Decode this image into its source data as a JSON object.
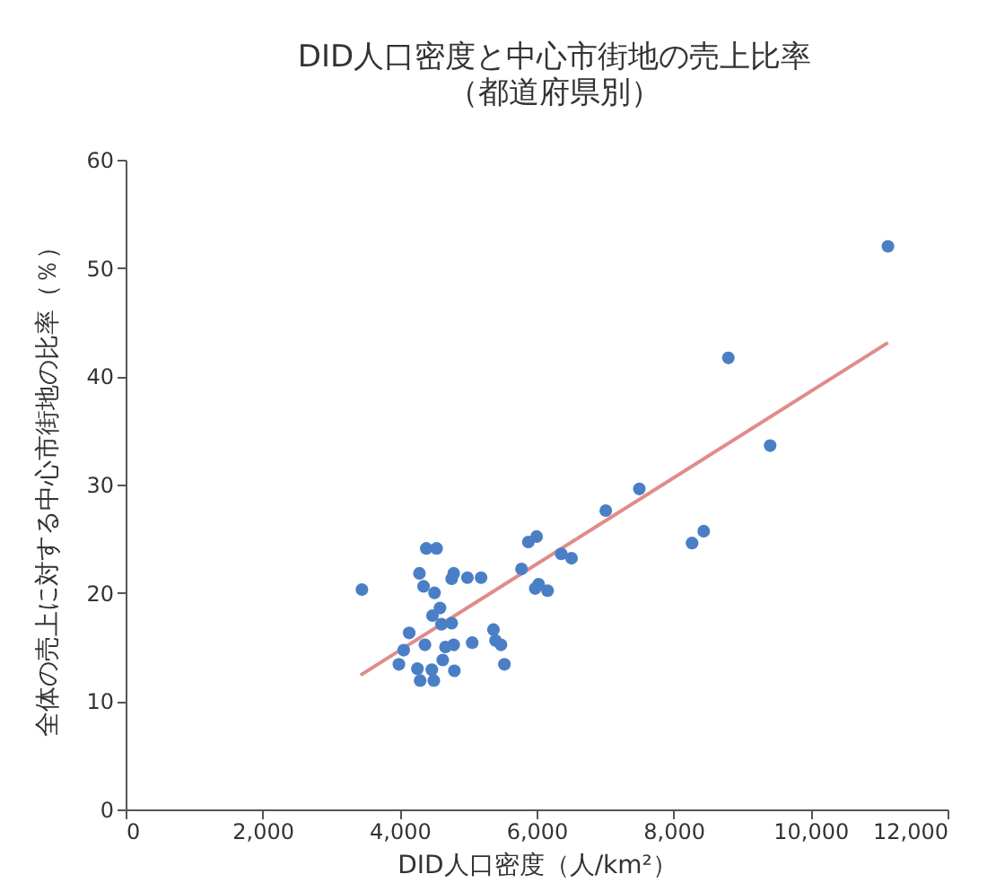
{
  "chart_data": {
    "type": "scatter",
    "title": "DID人口密度と中心市街地の売上比率",
    "subtitle": "（都道府県別）",
    "xlabel": "DID人口密度（人/km²）",
    "ylabel": "全体の売上に対する中心市街地の比率（％）",
    "xlim": [
      0,
      12000
    ],
    "ylim": [
      0,
      60
    ],
    "xticks": [
      0,
      {
        "value": 2000,
        "label": "2,000"
      },
      {
        "value": 4000,
        "label": "4,000"
      },
      {
        "value": 6000,
        "label": "6,000"
      },
      {
        "value": 8000,
        "label": "8,000"
      },
      {
        "value": 10000,
        "label": "10,000"
      },
      {
        "value": 12000,
        "label": "12,000"
      }
    ],
    "yticks": [
      0,
      10,
      20,
      30,
      40,
      50,
      60
    ],
    "grid": false,
    "series": [
      {
        "marker": "circle",
        "color": "#4a7fc6",
        "x": [
          3450,
          4390,
          4540,
          4290,
          4350,
          4510,
          4790,
          4760,
          4990,
          5190,
          5780,
          5880,
          6000,
          6360,
          6510,
          6030,
          5980,
          6160,
          7010,
          4590,
          4480,
          4610,
          4760,
          4140,
          4060,
          4370,
          4670,
          4790,
          5060,
          5370,
          5400,
          5480,
          5530,
          3990,
          4630,
          4260,
          4470,
          4800,
          4300,
          4500,
          7500,
          8800,
          9410,
          11130,
          8270,
          8440
        ],
        "values": [
          20.3,
          24.1,
          24.1,
          21.8,
          20.6,
          20.0,
          21.8,
          21.3,
          21.4,
          21.4,
          22.2,
          24.7,
          25.2,
          23.6,
          23.2,
          20.8,
          20.4,
          20.2,
          27.6,
          18.6,
          17.9,
          17.1,
          17.2,
          16.3,
          14.7,
          15.2,
          15.0,
          15.2,
          15.4,
          16.6,
          15.6,
          15.2,
          13.4,
          13.4,
          13.8,
          13.0,
          12.9,
          12.8,
          11.9,
          11.9,
          29.6,
          41.7,
          33.6,
          52.0,
          24.6,
          25.7
        ]
      },
      {
        "type": "line",
        "color": "#e08c88",
        "x": [
          3430,
          11130
        ],
        "values": [
          12.4,
          43.1
        ]
      }
    ]
  }
}
